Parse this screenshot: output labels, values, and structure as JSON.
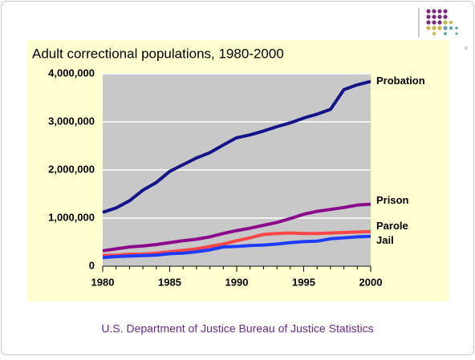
{
  "chart_data": {
    "type": "line",
    "title": "Adult correctional populations, 1980-2000",
    "x": [
      1980,
      1981,
      1982,
      1983,
      1984,
      1985,
      1986,
      1987,
      1988,
      1989,
      1990,
      1991,
      1992,
      1993,
      1994,
      1995,
      1996,
      1997,
      1998,
      1999,
      2000
    ],
    "series": [
      {
        "name": "Probation",
        "color": "#14148a",
        "values": [
          1120000,
          1210000,
          1360000,
          1580000,
          1740000,
          1970000,
          2110000,
          2250000,
          2360000,
          2520000,
          2670000,
          2730000,
          2810000,
          2900000,
          2980000,
          3080000,
          3160000,
          3260000,
          3670000,
          3770000,
          3840000
        ]
      },
      {
        "name": "Prison",
        "color": "#8b0a8b",
        "values": [
          320000,
          360000,
          400000,
          420000,
          450000,
          490000,
          530000,
          560000,
          610000,
          680000,
          740000,
          790000,
          850000,
          910000,
          990000,
          1080000,
          1140000,
          1180000,
          1220000,
          1270000,
          1290000
        ]
      },
      {
        "name": "Parole",
        "color": "#ff4646",
        "values": [
          220000,
          230000,
          250000,
          250000,
          270000,
          300000,
          330000,
          360000,
          410000,
          460000,
          530000,
          590000,
          660000,
          680000,
          690000,
          680000,
          680000,
          690000,
          700000,
          710000,
          720000
        ]
      },
      {
        "name": "Jail",
        "color": "#1e3cff",
        "values": [
          180000,
          200000,
          210000,
          220000,
          230000,
          260000,
          270000,
          300000,
          340000,
          400000,
          410000,
          430000,
          440000,
          460000,
          490000,
          510000,
          520000,
          570000,
          590000,
          610000,
          620000
        ]
      }
    ],
    "xlim": [
      1980,
      2000
    ],
    "xticks": [
      1980,
      1985,
      1990,
      1995,
      2000
    ],
    "ylim": [
      0,
      4000000
    ],
    "yticks": [
      0,
      {
        "value": 1000000,
        "label": "1,000,000"
      },
      {
        "value": 2000000,
        "label": "2,000,000"
      },
      {
        "value": 3000000,
        "label": "3,000,000"
      },
      {
        "value": 4000000,
        "label": "4,000,000"
      }
    ],
    "grid": true
  },
  "footer": "U.S. Department of Justice Bureau of Justice Statistics"
}
